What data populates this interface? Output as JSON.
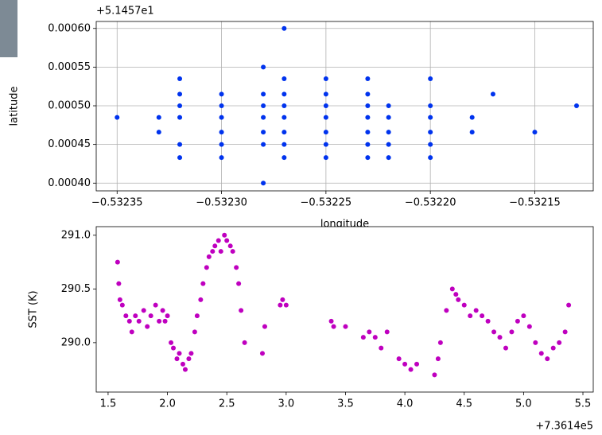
{
  "chart_data": [
    {
      "type": "scatter",
      "color": "#0033ee",
      "grid": true,
      "xlabel": "longitude",
      "ylabel": "latitude",
      "y_offset": "+5.1457e1",
      "xlim": [
        -0.53236,
        -0.532122
      ],
      "ylim": [
        0.00039,
        0.000609
      ],
      "xticks": [
        {
          "value": -0.53235,
          "label": "−0.53235"
        },
        {
          "value": -0.5323,
          "label": "−0.53230"
        },
        {
          "value": -0.53225,
          "label": "−0.53225"
        },
        {
          "value": -0.5322,
          "label": "−0.53220"
        },
        {
          "value": -0.53215,
          "label": "−0.53215"
        }
      ],
      "yticks": [
        {
          "value": 0.0004,
          "label": "0.00040"
        },
        {
          "value": 0.00045,
          "label": "0.00045"
        },
        {
          "value": 0.0005,
          "label": "0.00050"
        },
        {
          "value": 0.00055,
          "label": "0.00055"
        },
        {
          "value": 0.0006,
          "label": "0.00060"
        }
      ],
      "x": [
        -0.53235,
        -0.53233,
        -0.53233,
        -0.53232,
        -0.53232,
        -0.53232,
        -0.53232,
        -0.53232,
        -0.53232,
        -0.5323,
        -0.5323,
        -0.5323,
        -0.5323,
        -0.5323,
        -0.5323,
        -0.53228,
        -0.53228,
        -0.53228,
        -0.53228,
        -0.53228,
        -0.53228,
        -0.53228,
        -0.53227,
        -0.53227,
        -0.53227,
        -0.53227,
        -0.53227,
        -0.53227,
        -0.53227,
        -0.53227,
        -0.53225,
        -0.53225,
        -0.53225,
        -0.53225,
        -0.53225,
        -0.53225,
        -0.53225,
        -0.53223,
        -0.53223,
        -0.53223,
        -0.53223,
        -0.53223,
        -0.53223,
        -0.53223,
        -0.53222,
        -0.53222,
        -0.53222,
        -0.53222,
        -0.53222,
        -0.5322,
        -0.5322,
        -0.5322,
        -0.5322,
        -0.5322,
        -0.5322,
        -0.53218,
        -0.53218,
        -0.53217,
        -0.53215,
        -0.53213
      ],
      "values": [
        0.000485,
        0.000485,
        0.000466,
        0.000535,
        0.000515,
        0.0005,
        0.000485,
        0.00045,
        0.000433,
        0.000515,
        0.0005,
        0.000485,
        0.000466,
        0.00045,
        0.000433,
        0.00055,
        0.000515,
        0.0005,
        0.000485,
        0.000466,
        0.00045,
        0.0004,
        0.0006,
        0.000535,
        0.000515,
        0.0005,
        0.000485,
        0.000466,
        0.00045,
        0.000433,
        0.000535,
        0.000515,
        0.0005,
        0.000485,
        0.000466,
        0.00045,
        0.000433,
        0.000535,
        0.000515,
        0.0005,
        0.000485,
        0.000466,
        0.00045,
        0.000433,
        0.0005,
        0.000485,
        0.000466,
        0.00045,
        0.000433,
        0.000535,
        0.0005,
        0.000485,
        0.000466,
        0.00045,
        0.000433,
        0.000485,
        0.000466,
        0.000515,
        0.000466,
        0.0005
      ]
    },
    {
      "type": "scatter",
      "color": "#bf00bf",
      "grid": false,
      "ylabel": "SST (K)",
      "x_offset": "+7.3614e5",
      "xlim": [
        1.4,
        5.587
      ],
      "ylim": [
        289.54,
        291.08
      ],
      "xticks": [
        1.5,
        {
          "value": 2.0,
          "label": "2.0"
        },
        2.5,
        {
          "value": 3.0,
          "label": "3.0"
        },
        3.5,
        {
          "value": 4.0,
          "label": "4.0"
        },
        4.5,
        {
          "value": 5.0,
          "label": "5.0"
        },
        5.5
      ],
      "yticks": [
        {
          "value": 290.0,
          "label": "290.0"
        },
        290.5,
        {
          "value": 291.0,
          "label": "291.0"
        }
      ],
      "x": [
        1.58,
        1.59,
        1.6,
        1.62,
        1.65,
        1.68,
        1.7,
        1.73,
        1.76,
        1.8,
        1.83,
        1.86,
        1.9,
        1.93,
        1.96,
        1.98,
        2.0,
        2.03,
        2.05,
        2.08,
        2.1,
        2.13,
        2.15,
        2.18,
        2.2,
        2.23,
        2.25,
        2.28,
        2.3,
        2.33,
        2.35,
        2.38,
        2.4,
        2.43,
        2.45,
        2.48,
        2.5,
        2.53,
        2.55,
        2.58,
        2.6,
        2.62,
        2.65,
        2.8,
        2.82,
        2.95,
        2.97,
        3.0,
        3.38,
        3.4,
        3.5,
        3.65,
        3.7,
        3.75,
        3.8,
        3.85,
        3.95,
        4.0,
        4.05,
        4.1,
        4.25,
        4.28,
        4.3,
        4.35,
        4.4,
        4.43,
        4.45,
        4.5,
        4.55,
        4.6,
        4.65,
        4.7,
        4.75,
        4.8,
        4.85,
        4.9,
        4.95,
        5.0,
        5.05,
        5.1,
        5.15,
        5.2,
        5.25,
        5.3,
        5.35,
        5.38
      ],
      "values": [
        290.75,
        290.55,
        290.4,
        290.35,
        290.25,
        290.2,
        290.1,
        290.25,
        290.2,
        290.3,
        290.15,
        290.25,
        290.35,
        290.2,
        290.3,
        290.2,
        290.25,
        290.0,
        289.95,
        289.85,
        289.9,
        289.8,
        289.75,
        289.85,
        289.9,
        290.1,
        290.25,
        290.4,
        290.55,
        290.7,
        290.8,
        290.85,
        290.9,
        290.95,
        290.85,
        291.0,
        290.95,
        290.9,
        290.85,
        290.7,
        290.55,
        290.3,
        290.0,
        289.9,
        290.15,
        290.35,
        290.4,
        290.35,
        290.2,
        290.15,
        290.15,
        290.05,
        290.1,
        290.05,
        289.95,
        290.1,
        289.85,
        289.8,
        289.75,
        289.8,
        289.7,
        289.85,
        290.0,
        290.3,
        290.5,
        290.45,
        290.4,
        290.35,
        290.25,
        290.3,
        290.25,
        290.2,
        290.1,
        290.05,
        289.95,
        290.1,
        290.2,
        290.25,
        290.15,
        290.0,
        289.9,
        289.85,
        289.95,
        290.0,
        290.1,
        290.35
      ]
    }
  ]
}
